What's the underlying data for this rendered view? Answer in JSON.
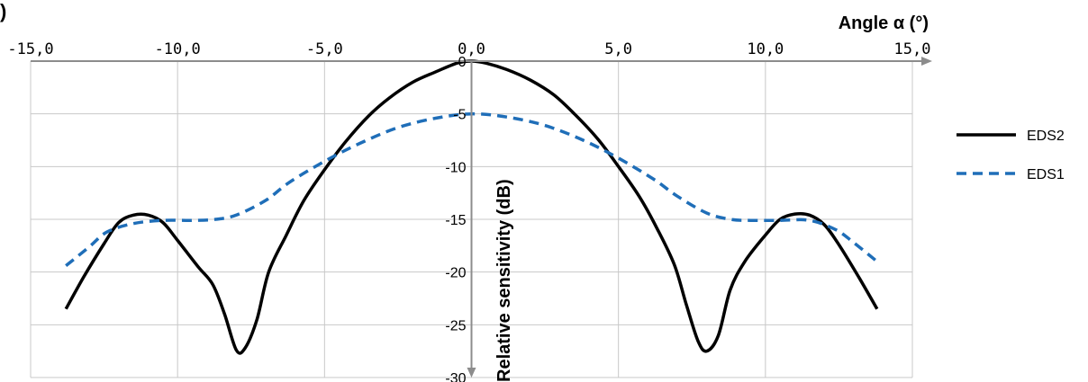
{
  "corner_mark": ")",
  "chart_data": {
    "type": "line",
    "xlabel": "Angle α (°)",
    "ylabel": "Relative sensitivity  (dB)",
    "xlim": [
      -15,
      15
    ],
    "ylim": [
      -30,
      0
    ],
    "x_ticks": [
      "-15,0",
      "-10,0",
      "-5,0",
      "0,0",
      "5,0",
      "10,0",
      "15,0"
    ],
    "x_tick_values": [
      -15,
      -10,
      -5,
      0,
      5,
      10,
      15
    ],
    "y_ticks": [
      "0",
      "-5",
      "-10",
      "-15",
      "-20",
      "-25",
      "-30"
    ],
    "y_tick_values": [
      0,
      -5,
      -10,
      -15,
      -20,
      -25,
      -30
    ],
    "grid": {
      "vertical": true,
      "horizontal": true
    },
    "legend_position": "right",
    "series": [
      {
        "name": "EDS2",
        "color": "#000000",
        "style": "solid",
        "points": [
          [
            -13.8,
            -23.5
          ],
          [
            -13.2,
            -20.5
          ],
          [
            -12.5,
            -17.3
          ],
          [
            -12.0,
            -15.3
          ],
          [
            -11.5,
            -14.6
          ],
          [
            -11.0,
            -14.6
          ],
          [
            -10.5,
            -15.3
          ],
          [
            -10.0,
            -17.0
          ],
          [
            -9.3,
            -19.5
          ],
          [
            -8.8,
            -21.2
          ],
          [
            -8.4,
            -24.0
          ],
          [
            -8.0,
            -27.4
          ],
          [
            -7.7,
            -27.2
          ],
          [
            -7.3,
            -24.5
          ],
          [
            -6.9,
            -20.0
          ],
          [
            -6.3,
            -16.5
          ],
          [
            -5.7,
            -13.2
          ],
          [
            -5.0,
            -10.3
          ],
          [
            -4.3,
            -7.7
          ],
          [
            -3.5,
            -5.2
          ],
          [
            -2.8,
            -3.5
          ],
          [
            -2.0,
            -2.0
          ],
          [
            -1.2,
            -1.0
          ],
          [
            -0.5,
            -0.2
          ],
          [
            0.0,
            0.0
          ],
          [
            0.5,
            -0.2
          ],
          [
            1.2,
            -0.8
          ],
          [
            2.0,
            -1.8
          ],
          [
            2.8,
            -3.2
          ],
          [
            3.5,
            -5.0
          ],
          [
            4.3,
            -7.4
          ],
          [
            5.0,
            -10.0
          ],
          [
            5.7,
            -12.8
          ],
          [
            6.3,
            -15.8
          ],
          [
            6.9,
            -19.3
          ],
          [
            7.3,
            -23.0
          ],
          [
            7.7,
            -26.5
          ],
          [
            8.0,
            -27.5
          ],
          [
            8.4,
            -26.0
          ],
          [
            8.8,
            -21.7
          ],
          [
            9.3,
            -19.0
          ],
          [
            10.0,
            -16.5
          ],
          [
            10.5,
            -15.0
          ],
          [
            11.0,
            -14.5
          ],
          [
            11.5,
            -14.6
          ],
          [
            12.0,
            -15.5
          ],
          [
            12.5,
            -17.4
          ],
          [
            13.2,
            -20.6
          ],
          [
            13.8,
            -23.5
          ]
        ]
      },
      {
        "name": "EDS1",
        "color": "#1f6eb8",
        "style": "dashed",
        "points": [
          [
            -13.8,
            -19.4
          ],
          [
            -13.0,
            -17.6
          ],
          [
            -12.4,
            -16.2
          ],
          [
            -11.5,
            -15.4
          ],
          [
            -10.5,
            -15.1
          ],
          [
            -9.5,
            -15.1
          ],
          [
            -8.7,
            -15.0
          ],
          [
            -8.0,
            -14.6
          ],
          [
            -7.0,
            -13.2
          ],
          [
            -6.2,
            -11.5
          ],
          [
            -5.0,
            -9.5
          ],
          [
            -3.8,
            -7.8
          ],
          [
            -2.5,
            -6.3
          ],
          [
            -1.2,
            -5.4
          ],
          [
            0.0,
            -5.0
          ],
          [
            1.2,
            -5.3
          ],
          [
            2.5,
            -6.1
          ],
          [
            3.8,
            -7.5
          ],
          [
            5.0,
            -9.2
          ],
          [
            6.2,
            -11.2
          ],
          [
            7.0,
            -12.8
          ],
          [
            8.0,
            -14.4
          ],
          [
            8.8,
            -15.0
          ],
          [
            9.5,
            -15.1
          ],
          [
            10.5,
            -15.1
          ],
          [
            11.5,
            -15.1
          ],
          [
            12.4,
            -16.0
          ],
          [
            13.0,
            -17.2
          ],
          [
            13.8,
            -19.0
          ]
        ]
      }
    ]
  }
}
